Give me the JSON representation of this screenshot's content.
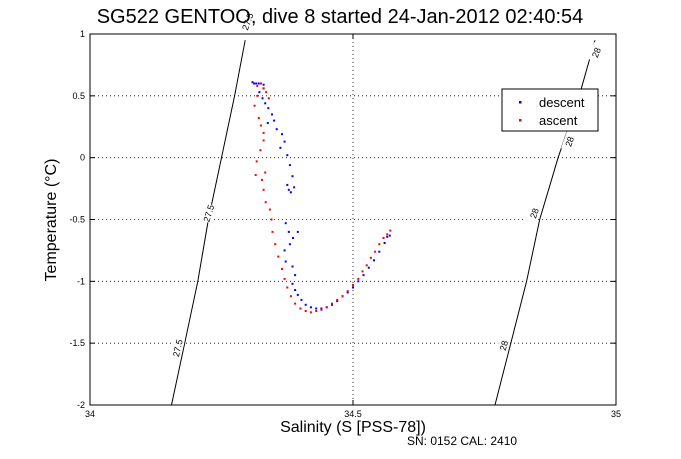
{
  "chart_data": {
    "type": "scatter",
    "title": "SG522 GENTOO, dive 8 started 24-Jan-2012 02:40:54",
    "xlabel": "Salinity (S [PSS-78])",
    "ylabel": "Temperature (°C)",
    "xlim": [
      34,
      35
    ],
    "ylim": [
      -2,
      1
    ],
    "x_ticks": [
      34,
      34.5,
      35
    ],
    "x_tick_labels": [
      "34",
      "34.5",
      "35"
    ],
    "y_ticks": [
      -2,
      -1.5,
      -1,
      -0.5,
      0,
      0.5,
      1
    ],
    "y_tick_labels": [
      "-2",
      "-1.5",
      "-1",
      "-0.5",
      "0",
      "0.5",
      "1"
    ],
    "grid": true,
    "legend_position": "top-right",
    "series": [
      {
        "name": "descent",
        "color": "#0000ff",
        "points": [
          [
            34.309,
            0.61
          ],
          [
            34.312,
            0.6
          ],
          [
            34.316,
            0.6
          ],
          [
            34.321,
            0.6
          ],
          [
            34.33,
            0.59
          ],
          [
            34.33,
            0.56
          ],
          [
            34.322,
            0.53
          ],
          [
            34.328,
            0.48
          ],
          [
            34.333,
            0.44
          ],
          [
            34.339,
            0.4
          ],
          [
            34.346,
            0.35
          ],
          [
            34.35,
            0.3
          ],
          [
            34.338,
            0.28
          ],
          [
            34.355,
            0.23
          ],
          [
            34.365,
            0.19
          ],
          [
            34.37,
            0.13
          ],
          [
            34.362,
            0.08
          ],
          [
            34.375,
            0.02
          ],
          [
            34.38,
            -0.06
          ],
          [
            34.385,
            -0.15
          ],
          [
            34.375,
            -0.22
          ],
          [
            34.378,
            -0.26
          ],
          [
            34.382,
            -0.28
          ],
          [
            34.388,
            -0.24
          ],
          [
            34.372,
            -0.53
          ],
          [
            34.378,
            -0.6
          ],
          [
            34.386,
            -0.65
          ],
          [
            34.395,
            -0.6
          ],
          [
            34.38,
            -0.7
          ],
          [
            34.37,
            -0.75
          ],
          [
            34.372,
            -0.84
          ],
          [
            34.385,
            -0.88
          ],
          [
            34.39,
            -0.95
          ],
          [
            34.385,
            -1.02
          ],
          [
            34.39,
            -1.07
          ],
          [
            34.395,
            -1.11
          ],
          [
            34.402,
            -1.15
          ],
          [
            34.41,
            -1.19
          ],
          [
            34.42,
            -1.21
          ],
          [
            34.43,
            -1.22
          ],
          [
            34.44,
            -1.22
          ],
          [
            34.45,
            -1.21
          ],
          [
            34.46,
            -1.19
          ],
          [
            34.47,
            -1.16
          ],
          [
            34.48,
            -1.12
          ],
          [
            34.49,
            -1.09
          ],
          [
            34.5,
            -1.05
          ],
          [
            34.51,
            -1.0
          ],
          [
            34.52,
            -0.95
          ],
          [
            34.53,
            -0.89
          ],
          [
            34.54,
            -0.83
          ],
          [
            34.55,
            -0.76
          ],
          [
            34.56,
            -0.69
          ],
          [
            34.565,
            -0.64
          ],
          [
            34.57,
            -0.63
          ]
        ]
      },
      {
        "name": "ascent",
        "color": "#ff0000",
        "points": [
          [
            34.571,
            -0.59
          ],
          [
            34.565,
            -0.62
          ],
          [
            34.558,
            -0.65
          ],
          [
            34.55,
            -0.7
          ],
          [
            34.542,
            -0.76
          ],
          [
            34.534,
            -0.81
          ],
          [
            34.526,
            -0.87
          ],
          [
            34.518,
            -0.92
          ],
          [
            34.51,
            -0.98
          ],
          [
            34.5,
            -1.03
          ],
          [
            34.49,
            -1.08
          ],
          [
            34.48,
            -1.12
          ],
          [
            34.47,
            -1.15
          ],
          [
            34.46,
            -1.18
          ],
          [
            34.45,
            -1.21
          ],
          [
            34.44,
            -1.23
          ],
          [
            34.43,
            -1.24
          ],
          [
            34.42,
            -1.25
          ],
          [
            34.41,
            -1.24
          ],
          [
            34.4,
            -1.22
          ],
          [
            34.39,
            -1.18
          ],
          [
            34.382,
            -1.12
          ],
          [
            34.375,
            -1.05
          ],
          [
            34.37,
            -0.98
          ],
          [
            34.365,
            -0.9
          ],
          [
            34.358,
            -0.8
          ],
          [
            34.352,
            -0.7
          ],
          [
            34.347,
            -0.6
          ],
          [
            34.345,
            -0.5
          ],
          [
            34.342,
            -0.42
          ],
          [
            34.334,
            -0.36
          ],
          [
            34.33,
            -0.26
          ],
          [
            34.327,
            -0.18
          ],
          [
            34.333,
            -0.12
          ],
          [
            34.315,
            -0.14
          ],
          [
            34.317,
            -0.03
          ],
          [
            34.324,
            0.06
          ],
          [
            34.33,
            0.14
          ],
          [
            34.33,
            0.2
          ],
          [
            34.325,
            0.26
          ],
          [
            34.321,
            0.32
          ],
          [
            34.313,
            0.42
          ],
          [
            34.318,
            0.5
          ],
          [
            34.318,
            0.58
          ],
          [
            34.325,
            0.6
          ],
          [
            34.33,
            0.56
          ],
          [
            34.335,
            0.53
          ],
          [
            34.34,
            0.48
          ]
        ]
      }
    ],
    "contours": [
      {
        "label": "27.5",
        "points": [
          [
            34.155,
            -2
          ],
          [
            34.18,
            -1.5
          ],
          [
            34.205,
            -1.0
          ],
          [
            34.225,
            -0.5
          ],
          [
            34.25,
            0.0
          ],
          [
            34.275,
            0.5
          ],
          [
            34.295,
            0.95
          ]
        ],
        "label_positions": [
          [
            34.167,
            -1.54,
            -77
          ],
          [
            34.226,
            -0.45,
            -73
          ],
          [
            34.3,
            1.1,
            -70
          ]
        ]
      },
      {
        "label": "28",
        "points": [
          [
            34.77,
            -2
          ],
          [
            34.8,
            -1.5
          ],
          [
            34.83,
            -1.0
          ],
          [
            34.855,
            -0.5
          ],
          [
            34.89,
            0.0
          ],
          [
            34.93,
            0.5
          ],
          [
            34.96,
            0.95
          ]
        ],
        "label_positions": [
          [
            34.787,
            -1.52,
            -75
          ],
          [
            34.845,
            -0.45,
            -72
          ],
          [
            34.912,
            0.13,
            -71
          ],
          [
            34.963,
            0.85,
            -68
          ]
        ]
      }
    ],
    "annotation": "SN: 0152  CAL: 2410"
  }
}
